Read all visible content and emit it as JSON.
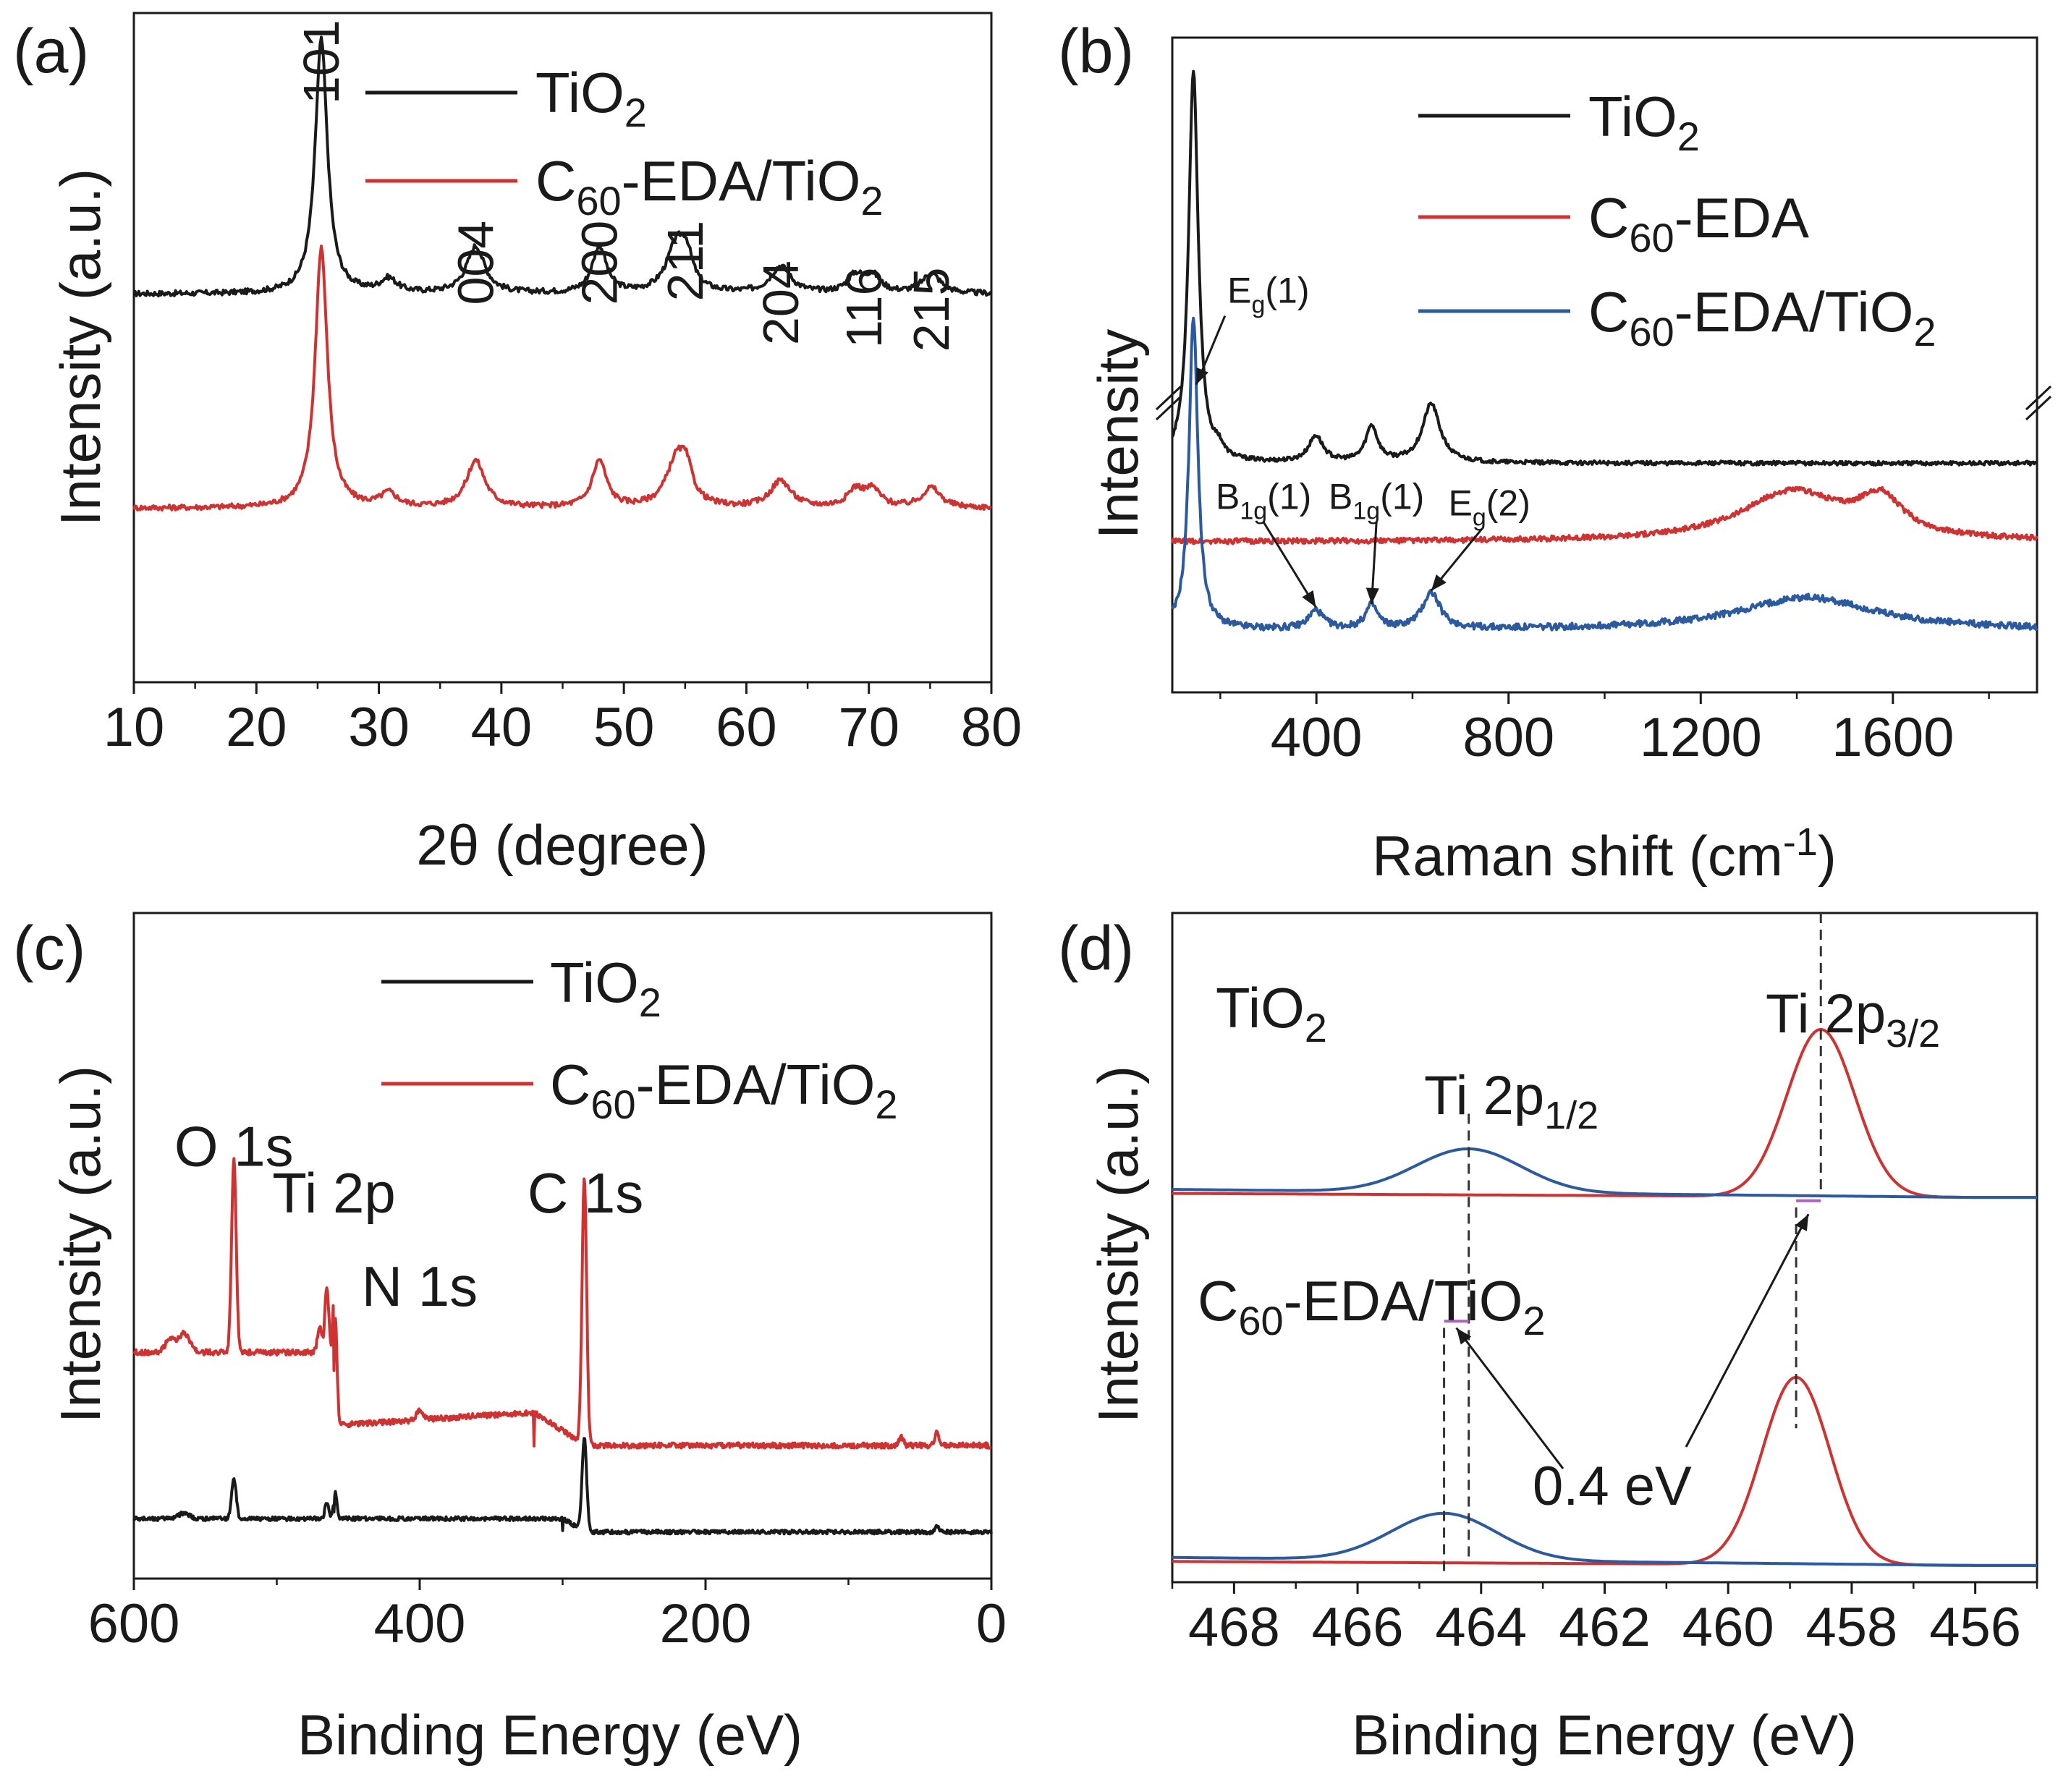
{
  "figure": {
    "colors": {
      "black": "#1a1a1a",
      "red": "#d03232",
      "blue": "#2c5aa0",
      "magenta": "#b060c0"
    }
  },
  "chart_data": [
    {
      "id": "a",
      "panel_label": "(a)",
      "type": "line",
      "title": "",
      "xlabel": "2θ (degree)",
      "ylabel": "Intensity (a.u.)",
      "xlim": [
        10,
        80
      ],
      "ylim": [
        0,
        1
      ],
      "xticks": [
        10,
        20,
        30,
        40,
        50,
        60,
        70,
        80
      ],
      "xtick_labels": [
        "10",
        "20",
        "30",
        "40",
        "50",
        "60",
        "70",
        "80"
      ],
      "legend": {
        "position": "top",
        "entries": [
          {
            "name": "TiO",
            "sub": "2",
            "tail": "",
            "color": "#1a1a1a"
          },
          {
            "name": "C",
            "sub": "60",
            "tail": "-EDA/TiO",
            "sub2": "2",
            "color": "#d03232"
          }
        ]
      },
      "series": [
        {
          "name": "TiO2",
          "color": "#1a1a1a",
          "base": 0.58,
          "noise": 0.004,
          "peaks": [
            [
              25.3,
              0.38,
              0.6
            ],
            [
              30.8,
              0.02,
              0.8
            ],
            [
              37.9,
              0.07,
              0.9
            ],
            [
              48.0,
              0.07,
              0.7
            ],
            [
              54.3,
              0.07,
              1.0
            ],
            [
              55.1,
              0.04,
              0.6
            ],
            [
              62.8,
              0.04,
              1.0
            ],
            [
              68.9,
              0.025,
              0.8
            ],
            [
              70.3,
              0.025,
              0.8
            ],
            [
              75.1,
              0.03,
              0.9
            ]
          ]
        },
        {
          "name": "C60-EDA/TiO2",
          "color": "#d03232",
          "base": 0.26,
          "noise": 0.004,
          "peaks": [
            [
              25.3,
              0.39,
              0.6
            ],
            [
              30.8,
              0.02,
              0.8
            ],
            [
              37.9,
              0.07,
              0.9
            ],
            [
              48.0,
              0.07,
              0.7
            ],
            [
              54.3,
              0.07,
              1.0
            ],
            [
              55.1,
              0.04,
              0.6
            ],
            [
              62.8,
              0.04,
              1.0
            ],
            [
              68.9,
              0.025,
              0.8
            ],
            [
              70.3,
              0.025,
              0.8
            ],
            [
              75.1,
              0.03,
              0.9
            ]
          ]
        }
      ],
      "annotations": [
        {
          "text": "101",
          "x": 25.3,
          "y": 0.99
        },
        {
          "text": "004",
          "x": 37.9,
          "y": 0.69
        },
        {
          "text": "200",
          "x": 48.0,
          "y": 0.69
        },
        {
          "text": "211",
          "x": 55.0,
          "y": 0.69
        },
        {
          "text": "204",
          "x": 62.8,
          "y": 0.63
        },
        {
          "text": "116",
          "x": 69.6,
          "y": 0.62
        },
        {
          "text": "215",
          "x": 75.1,
          "y": 0.62
        }
      ]
    },
    {
      "id": "b",
      "panel_label": "(b)",
      "type": "line",
      "title": "",
      "xlabel": "Raman shift (cm",
      "xlabel_sup": "-1",
      "xlabel_tail": ")",
      "ylabel": "Intensity",
      "xlim": [
        100,
        1900
      ],
      "ylim": [
        0,
        1
      ],
      "y_axis_break": true,
      "xticks": [
        400,
        800,
        1200,
        1600
      ],
      "xtick_labels": [
        "400",
        "800",
        "1200",
        "1600"
      ],
      "legend": {
        "position": "top-right",
        "entries": [
          {
            "name": "TiO",
            "sub": "2",
            "tail": "",
            "color": "#1a1a1a"
          },
          {
            "name": "C",
            "sub": "60",
            "tail": "-EDA",
            "color": "#d03232"
          },
          {
            "name": "C",
            "sub": "60",
            "tail": "-EDA/TiO",
            "sub2": "2",
            "color": "#2c5aa0"
          }
        ]
      },
      "series": [
        {
          "name": "TiO2",
          "color": "#1a1a1a",
          "base": 0.35,
          "noise": 0.003,
          "peaks": [
            [
              144,
              0.6,
              12
            ],
            [
              197,
              0.015,
              10
            ],
            [
              399,
              0.04,
              18
            ],
            [
              515,
              0.055,
              15
            ],
            [
              639,
              0.09,
              22
            ]
          ]
        },
        {
          "name": "C60-EDA",
          "color": "#d03232",
          "base": 0.23,
          "noise": 0.004,
          "peaks": [
            [
              1390,
              0.075,
              130
            ],
            [
              1575,
              0.055,
              55
            ]
          ]
        },
        {
          "name": "C60-EDA/TiO2",
          "color": "#2c5aa0",
          "base": 0.095,
          "noise": 0.005,
          "peaks": [
            [
              144,
              0.48,
              11
            ],
            [
              399,
              0.028,
              18
            ],
            [
              515,
              0.036,
              15
            ],
            [
              639,
              0.055,
              22
            ],
            [
              1420,
              0.05,
              170
            ]
          ]
        }
      ],
      "annotations": [
        {
          "text": "E",
          "sub": "g",
          "tail": "(1)",
          "x": 300,
          "y": 0.595
        },
        {
          "text": "B",
          "sub": "1g",
          "tail": "(1)",
          "x": 290,
          "y": 0.28
        },
        {
          "text": "B",
          "sub": "1g",
          "tail": "(1)",
          "x": 525,
          "y": 0.28
        },
        {
          "text": "E",
          "sub": "g",
          "tail": "(2)",
          "x": 760,
          "y": 0.27
        }
      ]
    },
    {
      "id": "c",
      "panel_label": "(c)",
      "type": "line",
      "title": "",
      "xlabel": "Binding Energy (eV)",
      "ylabel": "Intensity (a.u.)",
      "xlim": [
        600,
        0
      ],
      "ylim": [
        0,
        1
      ],
      "xticks": [
        600,
        400,
        200,
        0
      ],
      "xtick_labels": [
        "600",
        "400",
        "200",
        "0"
      ],
      "legend": {
        "position": "top",
        "entries": [
          {
            "name": "TiO",
            "sub": "2",
            "tail": "",
            "color": "#1a1a1a"
          },
          {
            "name": "C",
            "sub": "60",
            "tail": "-EDA/TiO",
            "sub2": "2",
            "color": "#d03232"
          }
        ]
      },
      "series": [
        {
          "name": "C60-EDA/TiO2",
          "color": "#d03232",
          "noise": 0.004
        },
        {
          "name": "TiO2",
          "color": "#1a1a1a",
          "noise": 0.003
        }
      ],
      "annotations": [
        {
          "text": "O 1s",
          "x": 530,
          "y": 0.62
        },
        {
          "text": "Ti 2p",
          "x": 460,
          "y": 0.55
        },
        {
          "text": "N 1s",
          "x": 400,
          "y": 0.41
        },
        {
          "text": "C 1s",
          "x": 284,
          "y": 0.55
        }
      ]
    },
    {
      "id": "d",
      "panel_label": "(d)",
      "type": "line",
      "title": "",
      "xlabel": "Binding Energy (eV)",
      "ylabel": "Intensity (a.u.)",
      "xlim": [
        469,
        455
      ],
      "ylim": [
        0,
        1
      ],
      "xticks": [
        468,
        466,
        464,
        462,
        460,
        458,
        456
      ],
      "xtick_labels": [
        "468",
        "466",
        "464",
        "462",
        "460",
        "458",
        "456"
      ],
      "sample_labels": [
        {
          "name": "TiO",
          "sub": "2",
          "tail": ""
        },
        {
          "name": "C",
          "sub": "60",
          "tail": "-EDA/TiO",
          "sub2": "2"
        }
      ],
      "peak_labels": [
        {
          "text": "Ti 2p",
          "sub": "3/2"
        },
        {
          "text": "Ti 2p",
          "sub": "1/2"
        }
      ],
      "shift_label": "0.4 eV",
      "series": [
        {
          "name": "TiO2 Ti 2p3/2 fit",
          "color": "#d03232",
          "base": 0.575,
          "center": 458.5,
          "amp": 0.25,
          "sigma": 0.55
        },
        {
          "name": "TiO2 Ti 2p1/2 fit",
          "color": "#2c5aa0",
          "base": 0.575,
          "center": 464.2,
          "amp": 0.065,
          "sigma": 0.85
        },
        {
          "name": "C60-EDA/TiO2 Ti 2p3/2 fit",
          "color": "#d03232",
          "base": 0.025,
          "center": 458.9,
          "amp": 0.28,
          "sigma": 0.55
        },
        {
          "name": "C60-EDA/TiO2 Ti 2p1/2 fit",
          "color": "#2c5aa0",
          "base": 0.025,
          "center": 464.6,
          "amp": 0.07,
          "sigma": 0.85
        }
      ]
    }
  ]
}
